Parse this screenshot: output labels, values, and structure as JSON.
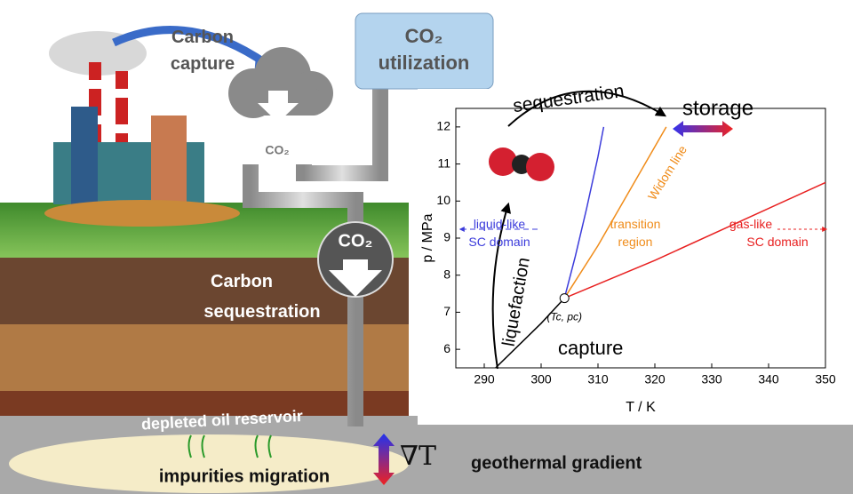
{
  "labels": {
    "carbon_capture": [
      "Carbon",
      "capture"
    ],
    "utilization": [
      "CO₂",
      "utilization"
    ],
    "cloud_co2": "CO₂",
    "circle_co2": "CO₂",
    "carbon_sequestration": [
      "Carbon",
      "sequestration"
    ],
    "reservoir": "depleted oil reservoir",
    "impurities": "impurities migration",
    "nabla": "∇T",
    "geothermal": "geothermal gradient"
  },
  "chart_data": {
    "type": "line",
    "xlabel": "T / K",
    "ylabel": "p / MPa",
    "xlim": [
      285,
      350
    ],
    "ylim": [
      5.5,
      12.5
    ],
    "xticks": [
      290,
      300,
      310,
      320,
      330,
      340,
      350
    ],
    "yticks": [
      6,
      7,
      8,
      9,
      10,
      11,
      12
    ],
    "series": [
      {
        "color": "#000000",
        "x": [
          292,
          296,
          300,
          304.1
        ],
        "y": [
          5.5,
          6.1,
          6.7,
          7.38
        ]
      },
      {
        "color": "#3b3bdb",
        "x": [
          304.1,
          306,
          308,
          310,
          311
        ],
        "y": [
          7.38,
          8.5,
          9.8,
          11.2,
          12
        ]
      },
      {
        "color": "#f08c1a",
        "x": [
          304.1,
          310,
          316,
          322
        ],
        "y": [
          7.38,
          8.8,
          10.4,
          12
        ]
      },
      {
        "color": "#e82020",
        "x": [
          304.1,
          320,
          335,
          350
        ],
        "y": [
          7.38,
          8.4,
          9.45,
          10.5
        ]
      }
    ],
    "critical_point": {
      "x": 304.1,
      "y": 7.38,
      "label": "(Tc, pc)"
    },
    "annotations": {
      "sequestration": "sequestration",
      "storage": "storage",
      "liquefaction": "liquefaction",
      "capture": "capture",
      "liquid": [
        "liquid-like",
        "SC domain"
      ],
      "transition": [
        "transition",
        "region"
      ],
      "gas": [
        "gas-like",
        "SC domain"
      ],
      "widom": "Widom line"
    }
  }
}
